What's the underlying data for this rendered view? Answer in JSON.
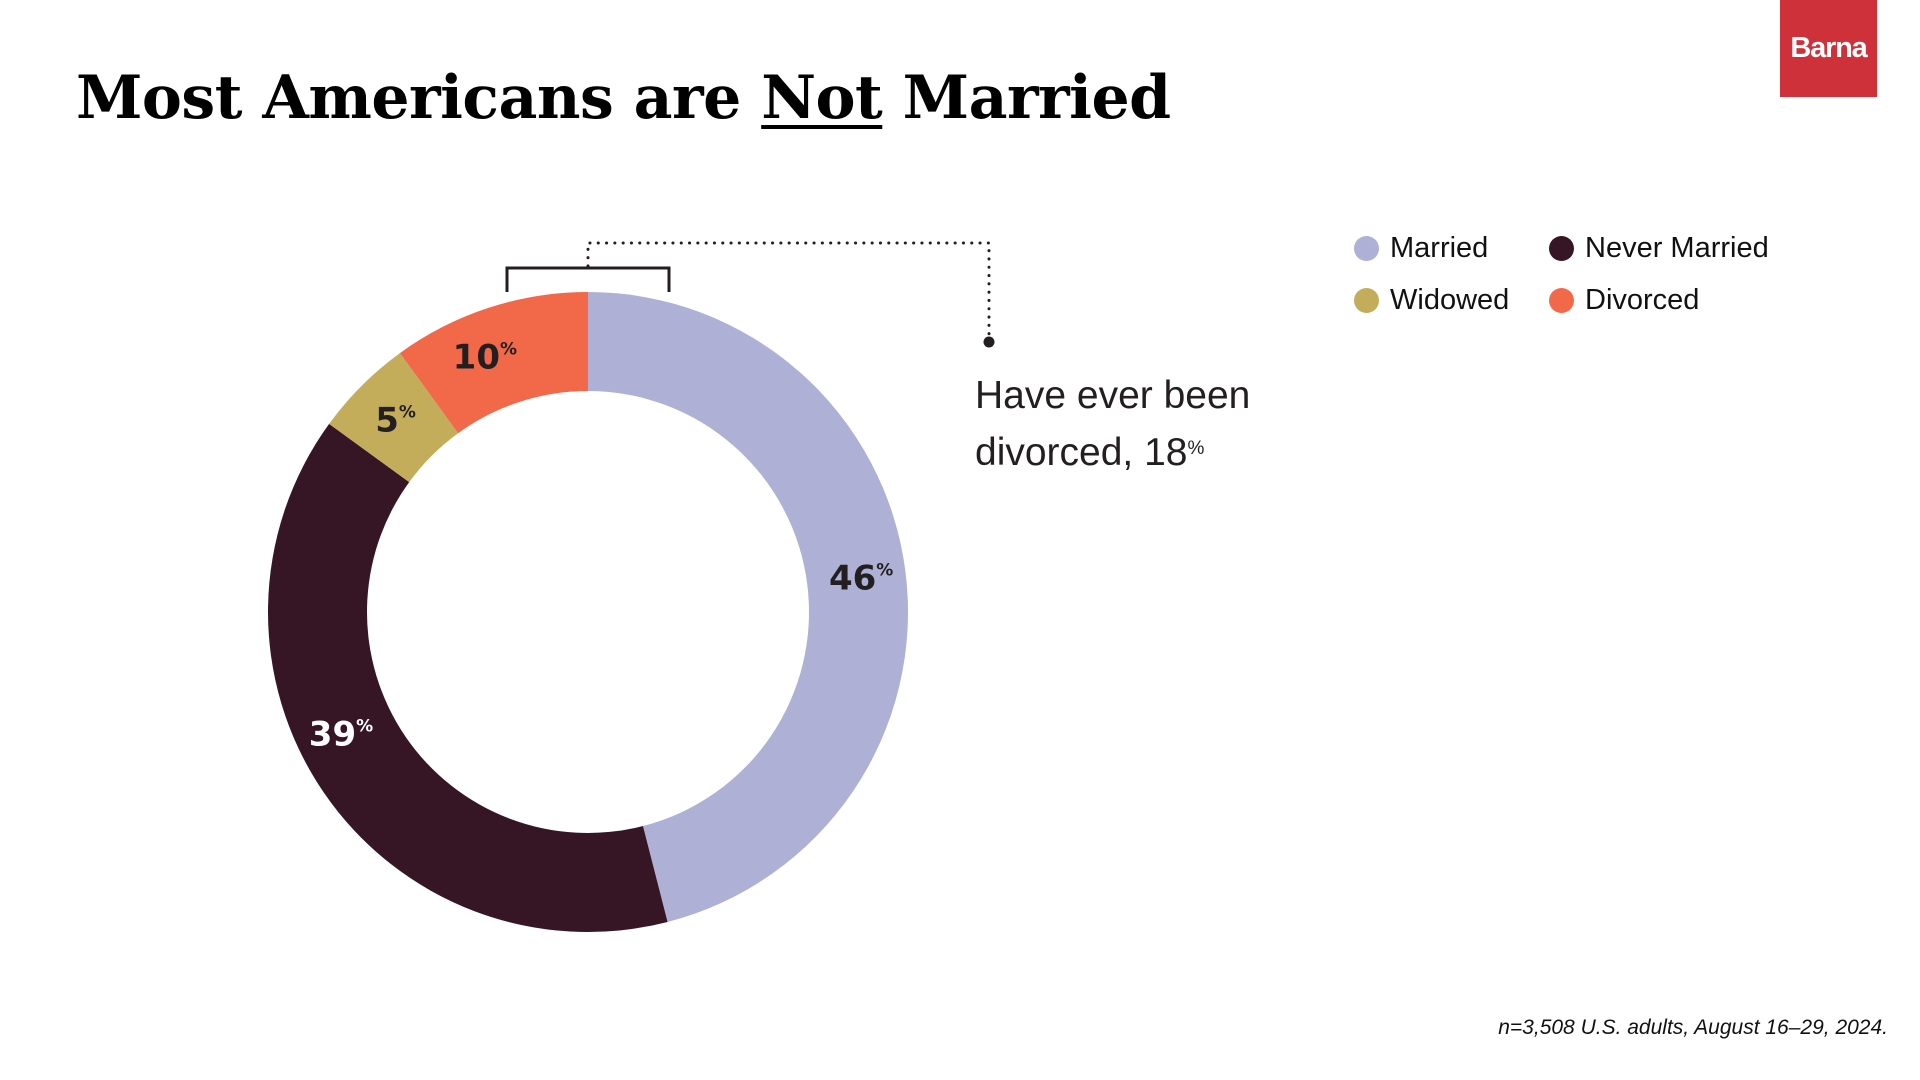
{
  "header": {
    "title_before": "Most Americans are ",
    "title_emphasis": "Not",
    "title_after": " Married",
    "logo_text": "Barna"
  },
  "chart_data": {
    "type": "pie",
    "variant": "donut",
    "title": "Most Americans are Not Married",
    "start": "top",
    "direction": "clockwise",
    "unit": "%",
    "slices": [
      {
        "name": "Married",
        "value": 46,
        "label": "46",
        "color": "#aeb0d6",
        "label_color": "#231f20"
      },
      {
        "name": "Never Married",
        "value": 39,
        "label": "39",
        "color": "#361624",
        "label_color": "#ffffff"
      },
      {
        "name": "Widowed",
        "value": 5,
        "label": "5",
        "color": "#c3ad5b",
        "label_color": "#231f20"
      },
      {
        "name": "Divorced",
        "value": 10,
        "label": "10",
        "color": "#f2694a",
        "label_color": "#231f20"
      }
    ],
    "legend": {
      "placement": "top-right",
      "entries": [
        "Married",
        "Never Married",
        "Widowed",
        "Divorced"
      ]
    },
    "annotation": {
      "line1": "Have ever been",
      "line2": "divorced, 18",
      "unit": "%",
      "value": 18
    }
  },
  "footnote": "n=3,508 U.S. adults, August 16–29, 2024."
}
